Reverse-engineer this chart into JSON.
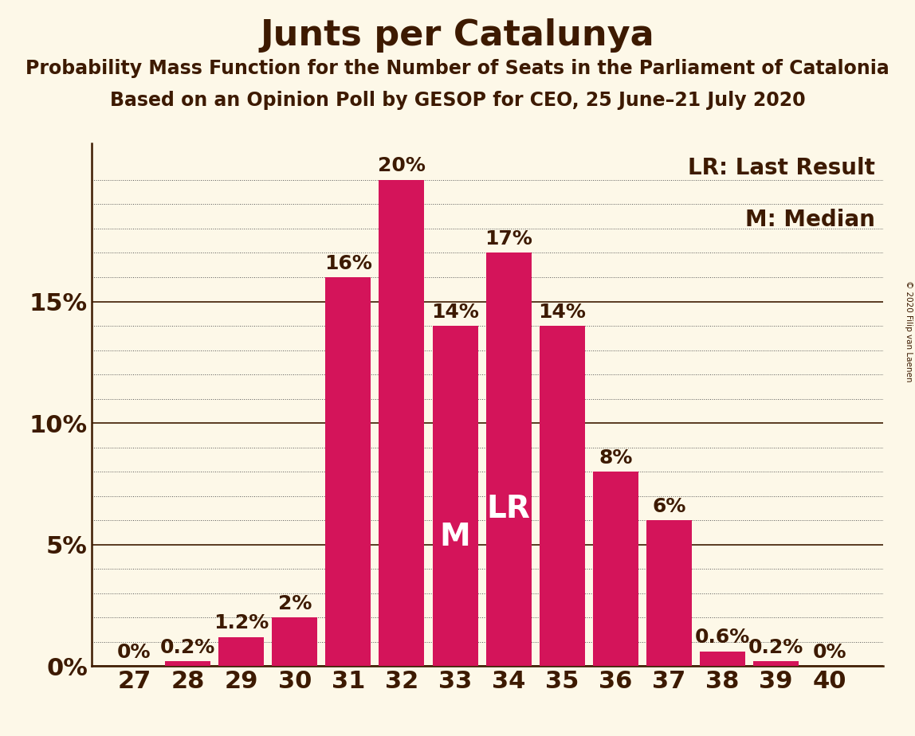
{
  "title": "Junts per Catalunya",
  "subtitle1": "Probability Mass Function for the Number of Seats in the Parliament of Catalonia",
  "subtitle2": "Based on an Opinion Poll by GESOP for CEO, 25 June–21 July 2020",
  "copyright": "© 2020 Filip van Laenen",
  "seats": [
    27,
    28,
    29,
    30,
    31,
    32,
    33,
    34,
    35,
    36,
    37,
    38,
    39,
    40
  ],
  "values": [
    0.0,
    0.2,
    1.2,
    2.0,
    16.0,
    20.0,
    14.0,
    17.0,
    14.0,
    8.0,
    6.0,
    0.6,
    0.2,
    0.0
  ],
  "bar_color": "#d4145a",
  "background_color": "#fdf8e8",
  "axis_color": "#3d1a00",
  "median_seat": 33,
  "lr_seat": 34,
  "legend_lr": "LR: Last Result",
  "legend_m": "M: Median",
  "ylim_max": 21.5,
  "major_yticks": [
    0,
    5,
    10,
    15
  ],
  "major_ytick_labels": [
    "0%",
    "5%",
    "10%",
    "15%"
  ],
  "minor_yticks": [
    1,
    2,
    3,
    4,
    6,
    7,
    8,
    9,
    11,
    12,
    13,
    14,
    16,
    17,
    18,
    19,
    20
  ],
  "title_fontsize": 32,
  "subtitle_fontsize": 17,
  "tick_fontsize": 22,
  "legend_fontsize": 20,
  "bar_label_fontsize": 18,
  "m_lr_fontsize": 28
}
